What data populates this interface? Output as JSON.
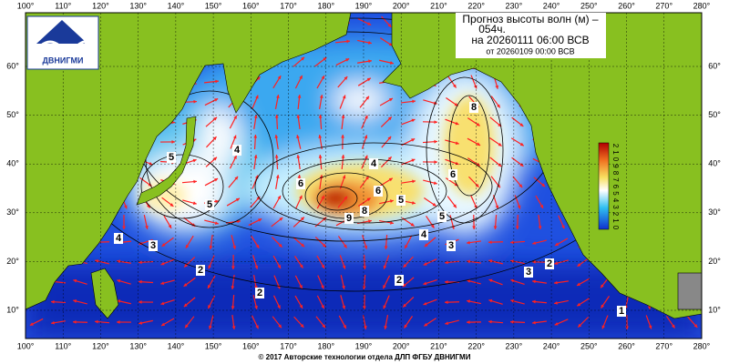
{
  "title": {
    "line1": "Прогноз высоты волн (м) –",
    "line2": "054ч.",
    "line3": "на 20260111 06:00 ВСВ",
    "line4": "от 20260109 00:00 ВСВ"
  },
  "logo": "ДВНИГМИ",
  "longitude_labels": [
    "100°",
    "110°",
    "120°",
    "130°",
    "140°",
    "150°",
    "160°",
    "170°",
    "180°",
    "190°",
    "200°",
    "210°",
    "220°",
    "230°",
    "240°",
    "250°",
    "260°",
    "270°",
    "280°"
  ],
  "latitude_labels": [
    "60°",
    "50°",
    "40°",
    "30°",
    "20°",
    "10°"
  ],
  "colorbar_labels": [
    "2",
    "1",
    "0",
    "9",
    "8",
    "7",
    "6",
    "5",
    "4",
    "3",
    "2",
    "1",
    "0"
  ],
  "contour_labels": [
    "5",
    "4",
    "6",
    "5",
    "4",
    "9",
    "8",
    "6",
    "5",
    "8",
    "6",
    "5",
    "4",
    "3",
    "2",
    "2",
    "3",
    "2",
    "2",
    "1",
    "3",
    "4"
  ],
  "copyright": "© 2017 Авторские технологии отдела ДЛП ФГБУ ДВНИГМИ"
}
